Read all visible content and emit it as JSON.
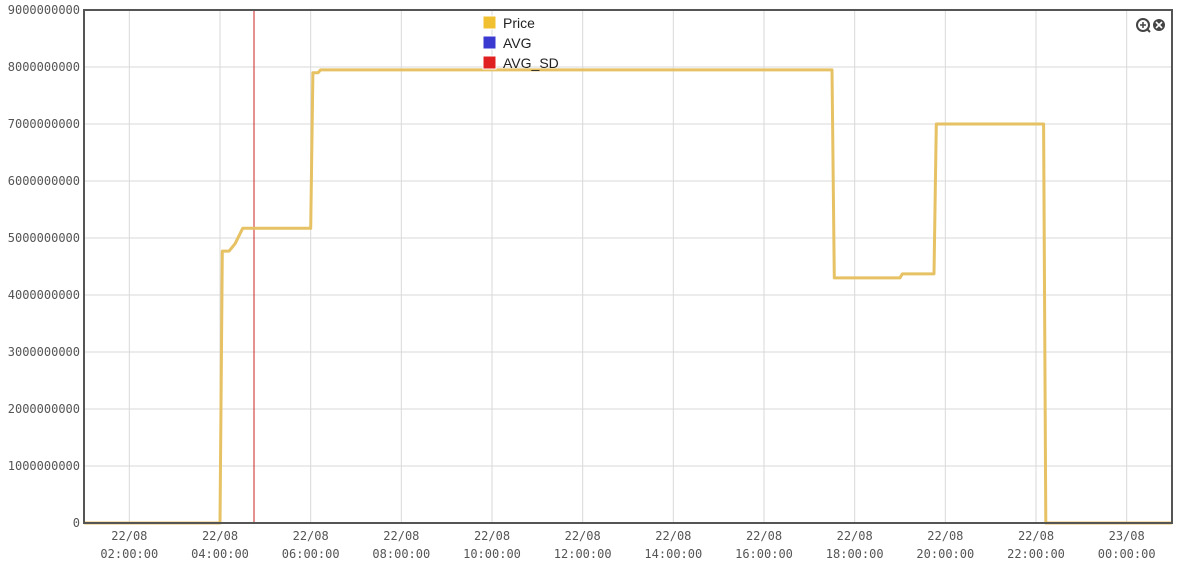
{
  "chart_data": {
    "type": "line",
    "title": "",
    "xlabel": "",
    "ylabel": "",
    "ylim": [
      0,
      9000000000
    ],
    "y_ticks": [
      0,
      1000000000,
      2000000000,
      3000000000,
      4000000000,
      5000000000,
      6000000000,
      7000000000,
      8000000000,
      9000000000
    ],
    "y_tick_labels": [
      "0",
      "1000000000",
      "2000000000",
      "3000000000",
      "4000000000",
      "5000000000",
      "6000000000",
      "7000000000",
      "8000000000",
      "9000000000"
    ],
    "xlim": [
      "22/08 01:00",
      "23/08 01:00"
    ],
    "x_ticks": [
      {
        "date": "22/08",
        "time": "02:00:00",
        "t": "22/08 02:00"
      },
      {
        "date": "22/08",
        "time": "04:00:00",
        "t": "22/08 04:00"
      },
      {
        "date": "22/08",
        "time": "06:00:00",
        "t": "22/08 06:00"
      },
      {
        "date": "22/08",
        "time": "08:00:00",
        "t": "22/08 08:00"
      },
      {
        "date": "22/08",
        "time": "10:00:00",
        "t": "22/08 10:00"
      },
      {
        "date": "22/08",
        "time": "12:00:00",
        "t": "22/08 12:00"
      },
      {
        "date": "22/08",
        "time": "14:00:00",
        "t": "22/08 14:00"
      },
      {
        "date": "22/08",
        "time": "16:00:00",
        "t": "22/08 16:00"
      },
      {
        "date": "22/08",
        "time": "18:00:00",
        "t": "22/08 18:00"
      },
      {
        "date": "22/08",
        "time": "20:00:00",
        "t": "22/08 20:00"
      },
      {
        "date": "22/08",
        "time": "22:00:00",
        "t": "22/08 22:00"
      },
      {
        "date": "23/08",
        "time": "00:00:00",
        "t": "23/08 00:00"
      }
    ],
    "grid": true,
    "legend_position": "top-center",
    "legend": [
      {
        "name": "Price",
        "color": "#f0c030"
      },
      {
        "name": "AVG",
        "color": "#3a3ad0"
      },
      {
        "name": "AVG_SD",
        "color": "#e02020"
      }
    ],
    "marker_line": {
      "t": "22/08 04:45",
      "color": "#cc2222"
    },
    "series": [
      {
        "name": "Price",
        "color": "#e6c264",
        "points": [
          {
            "t": "22/08 01:00",
            "y": 0
          },
          {
            "t": "22/08 04:00",
            "y": 0
          },
          {
            "t": "22/08 04:03",
            "y": 4770000000
          },
          {
            "t": "22/08 04:12",
            "y": 4770000000
          },
          {
            "t": "22/08 04:20",
            "y": 4900000000
          },
          {
            "t": "22/08 04:30",
            "y": 5170000000
          },
          {
            "t": "22/08 06:00",
            "y": 5170000000
          },
          {
            "t": "22/08 06:03",
            "y": 7900000000
          },
          {
            "t": "22/08 06:10",
            "y": 7900000000
          },
          {
            "t": "22/08 06:13",
            "y": 7950000000
          },
          {
            "t": "22/08 17:30",
            "y": 7950000000
          },
          {
            "t": "22/08 17:33",
            "y": 4300000000
          },
          {
            "t": "22/08 19:00",
            "y": 4300000000
          },
          {
            "t": "22/08 19:03",
            "y": 4370000000
          },
          {
            "t": "22/08 19:45",
            "y": 4370000000
          },
          {
            "t": "22/08 19:48",
            "y": 7000000000
          },
          {
            "t": "22/08 22:10",
            "y": 7000000000
          },
          {
            "t": "22/08 22:13",
            "y": 0
          },
          {
            "t": "23/08 01:00",
            "y": 0
          }
        ]
      },
      {
        "name": "AVG",
        "color": "#3a3ad0",
        "points": []
      },
      {
        "name": "AVG_SD",
        "color": "#e02020",
        "points": []
      }
    ]
  },
  "toolbar": {
    "zoom_icon": "zoom-in-icon",
    "close_icon": "close-icon"
  }
}
